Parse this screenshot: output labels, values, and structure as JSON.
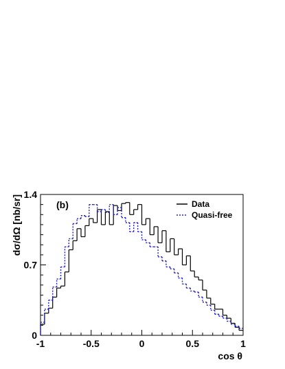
{
  "chart_data": {
    "type": "line",
    "step": true,
    "panel_label": "(b)",
    "xlabel": "cos θ",
    "ylabel": "dσ/dΩ [nb/sr]",
    "xlim": [
      -1,
      1
    ],
    "ylim": [
      0,
      1.4
    ],
    "xticks": [
      {
        "value": -1,
        "label": "-1"
      },
      {
        "value": -0.5,
        "label": "-0.5"
      },
      {
        "value": 0,
        "label": "0"
      },
      {
        "value": 0.5,
        "label": "0.5"
      },
      {
        "value": 1,
        "label": "1"
      }
    ],
    "yticks": [
      {
        "value": 0,
        "label": "0"
      },
      {
        "value": 0.7,
        "label": "0.7"
      },
      {
        "value": 1.4,
        "label": "1.4"
      }
    ],
    "legend": {
      "placement": "top-right"
    },
    "bin_edges": [
      -1,
      -0.96,
      -0.92,
      -0.88,
      -0.84,
      -0.8,
      -0.76,
      -0.72,
      -0.68,
      -0.64,
      -0.6,
      -0.56,
      -0.52,
      -0.48,
      -0.44,
      -0.4,
      -0.36,
      -0.32,
      -0.28,
      -0.24,
      -0.2,
      -0.16,
      -0.12,
      -0.08,
      -0.04,
      0,
      0.04,
      0.08,
      0.12,
      0.16,
      0.2,
      0.24,
      0.28,
      0.32,
      0.36,
      0.4,
      0.44,
      0.48,
      0.52,
      0.56,
      0.6,
      0.64,
      0.68,
      0.72,
      0.76,
      0.8,
      0.84,
      0.88,
      0.92,
      0.96,
      1
    ],
    "series": [
      {
        "name": "Data",
        "color": "#000000",
        "dash": "solid",
        "values": [
          0.11,
          0.22,
          0.27,
          0.38,
          0.47,
          0.49,
          0.63,
          0.85,
          0.94,
          1.06,
          0.98,
          1.09,
          1.16,
          1.12,
          1.25,
          1.1,
          1.23,
          1.1,
          1.29,
          1.24,
          1.31,
          1.32,
          1.2,
          1.25,
          1.3,
          1.1,
          1.16,
          1.0,
          1.08,
          0.92,
          1.04,
          0.83,
          0.96,
          0.8,
          0.86,
          0.7,
          0.79,
          0.64,
          0.58,
          0.55,
          0.45,
          0.37,
          0.31,
          0.26,
          0.26,
          0.2,
          0.17,
          0.12,
          0.08,
          0.05
        ]
      },
      {
        "name": "Quasi-free",
        "color": "#1f1fd6",
        "dash": "dotted",
        "values": [
          0.13,
          0.26,
          0.35,
          0.48,
          0.56,
          0.68,
          0.88,
          0.96,
          1.11,
          1.16,
          1.19,
          1.18,
          1.3,
          1.3,
          1.23,
          1.25,
          1.22,
          1.3,
          1.2,
          1.27,
          1.17,
          1.12,
          1.03,
          1.12,
          1.03,
          0.95,
          0.92,
          0.88,
          0.88,
          0.78,
          0.74,
          0.68,
          0.66,
          0.62,
          0.57,
          0.51,
          0.47,
          0.44,
          0.43,
          0.38,
          0.33,
          0.3,
          0.25,
          0.21,
          0.19,
          0.17,
          0.14,
          0.11,
          0.09,
          0.07
        ]
      }
    ]
  }
}
